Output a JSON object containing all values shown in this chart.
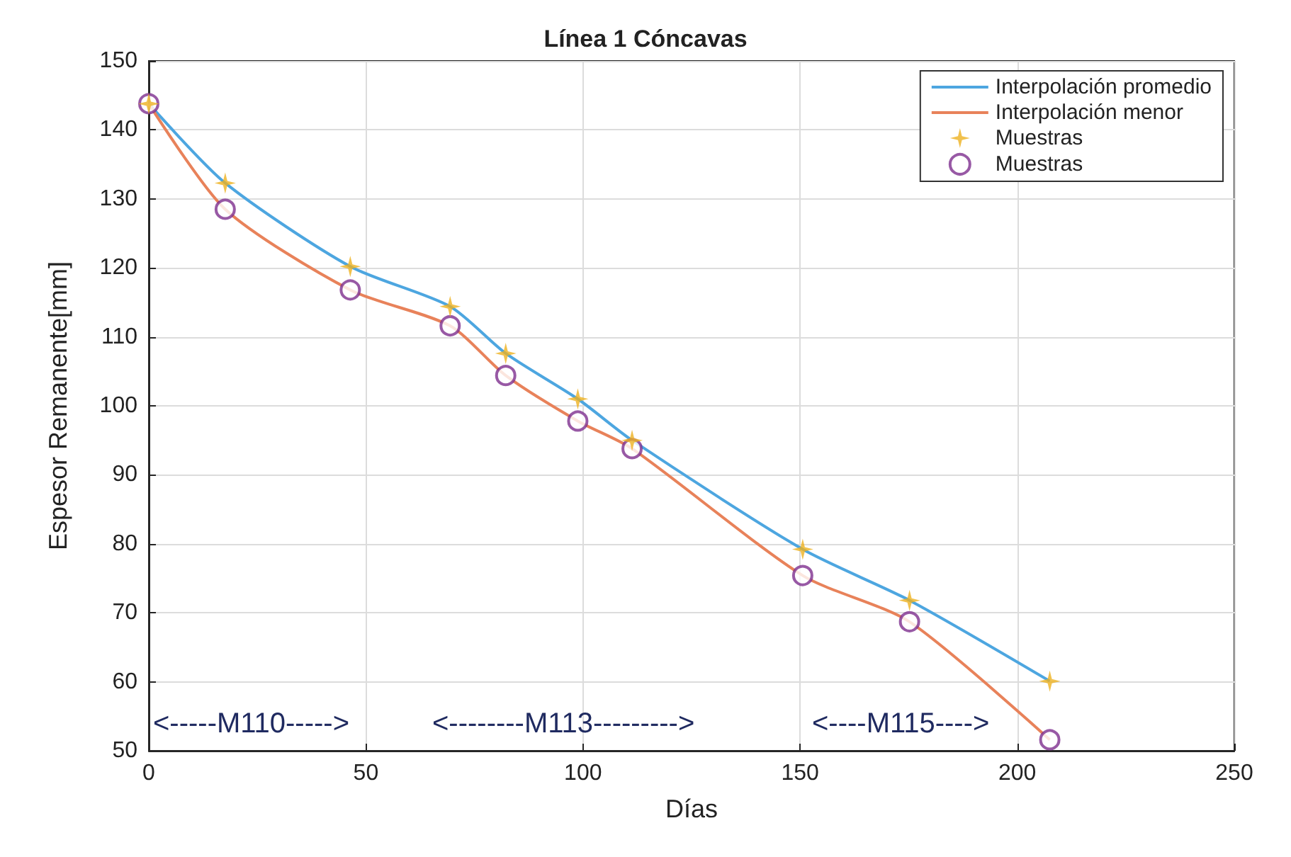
{
  "chart_data": {
    "type": "line",
    "title": "Línea 1 Cóncavas",
    "xlabel": "Días",
    "ylabel": "Espesor Remanente[mm]",
    "xlim": [
      0,
      250
    ],
    "xticks": [
      0,
      50,
      100,
      150,
      200,
      250
    ],
    "ylim": [
      50,
      150
    ],
    "yticks": [
      50,
      60,
      70,
      80,
      90,
      100,
      110,
      120,
      130,
      140,
      150
    ],
    "grid": true,
    "legend": "top right",
    "x": [
      0,
      17.6,
      46.4,
      69.4,
      82.2,
      98.8,
      111.3,
      150.6,
      175.2,
      207.5
    ],
    "series": [
      {
        "name": "Interpolación promedio",
        "color": "#4da6e0",
        "marker": "none",
        "values": [
          143.8,
          132.3,
          120.2,
          114.4,
          107.6,
          101,
          95,
          79.2,
          71.8,
          60.1
        ]
      },
      {
        "name": "Interpolación menor",
        "color": "#e8825a",
        "marker": "none",
        "values": [
          143.8,
          128.5,
          116.8,
          111.6,
          104.4,
          97.8,
          93.8,
          75.4,
          68.7,
          51.6
        ]
      },
      {
        "name": "Muestras",
        "type": "scatter",
        "color": "#edb120",
        "marker": "star",
        "values": [
          143.8,
          132.3,
          120.2,
          114.4,
          107.6,
          101,
          95,
          79.2,
          71.8,
          60.1
        ]
      },
      {
        "name": "Muestras",
        "type": "scatter",
        "color": "#7e2f8e",
        "marker": "circle",
        "values": [
          143.8,
          128.5,
          116.8,
          111.6,
          104.4,
          97.8,
          93.8,
          75.4,
          68.7,
          51.6
        ]
      }
    ],
    "annotations": [
      "<-----M110----->",
      "<--------M113--------->",
      "<----M115---->"
    ]
  }
}
